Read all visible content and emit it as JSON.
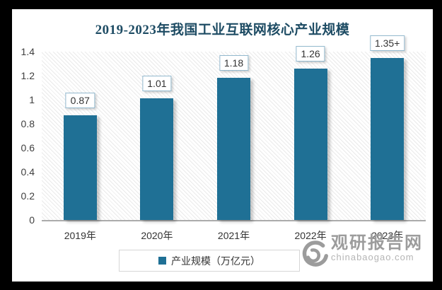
{
  "title": "2019-2023年我国工业互联网核心产业规模",
  "chart_data": {
    "type": "bar",
    "title": "2019-2023年我国工业互联网核心产业规模",
    "categories": [
      "2019年",
      "2020年",
      "2021年",
      "2022年",
      "2023年"
    ],
    "values": [
      0.87,
      1.01,
      1.18,
      1.26,
      1.35
    ],
    "bar_labels": [
      "0.87",
      "1.01",
      "1.18",
      "1.26",
      "1.35+"
    ],
    "series_name": "产业规模（万亿元）",
    "ylabel": "",
    "xlabel": "",
    "ylim": [
      0,
      1.4
    ],
    "y_ticks": [
      "0",
      "0.2",
      "0.4",
      "0.6",
      "0.8",
      "1",
      "1.2",
      "1.4"
    ],
    "y_tick_values": [
      0,
      0.2,
      0.4,
      0.6,
      0.8,
      1,
      1.2,
      1.4
    ],
    "grid": false,
    "legend_position": "bottom",
    "bar_color": "#1F7095",
    "label_box_border_color": "#93B9CE",
    "title_color": "#1E4C64",
    "plot_hatch": "diagonal"
  },
  "legend": {
    "label": "产业规模（万亿元）",
    "marker_color": "#1F7095"
  },
  "watermark": {
    "name": "观研报告网",
    "domain": "chinabaogao.com",
    "logo": "swirl-logo"
  }
}
